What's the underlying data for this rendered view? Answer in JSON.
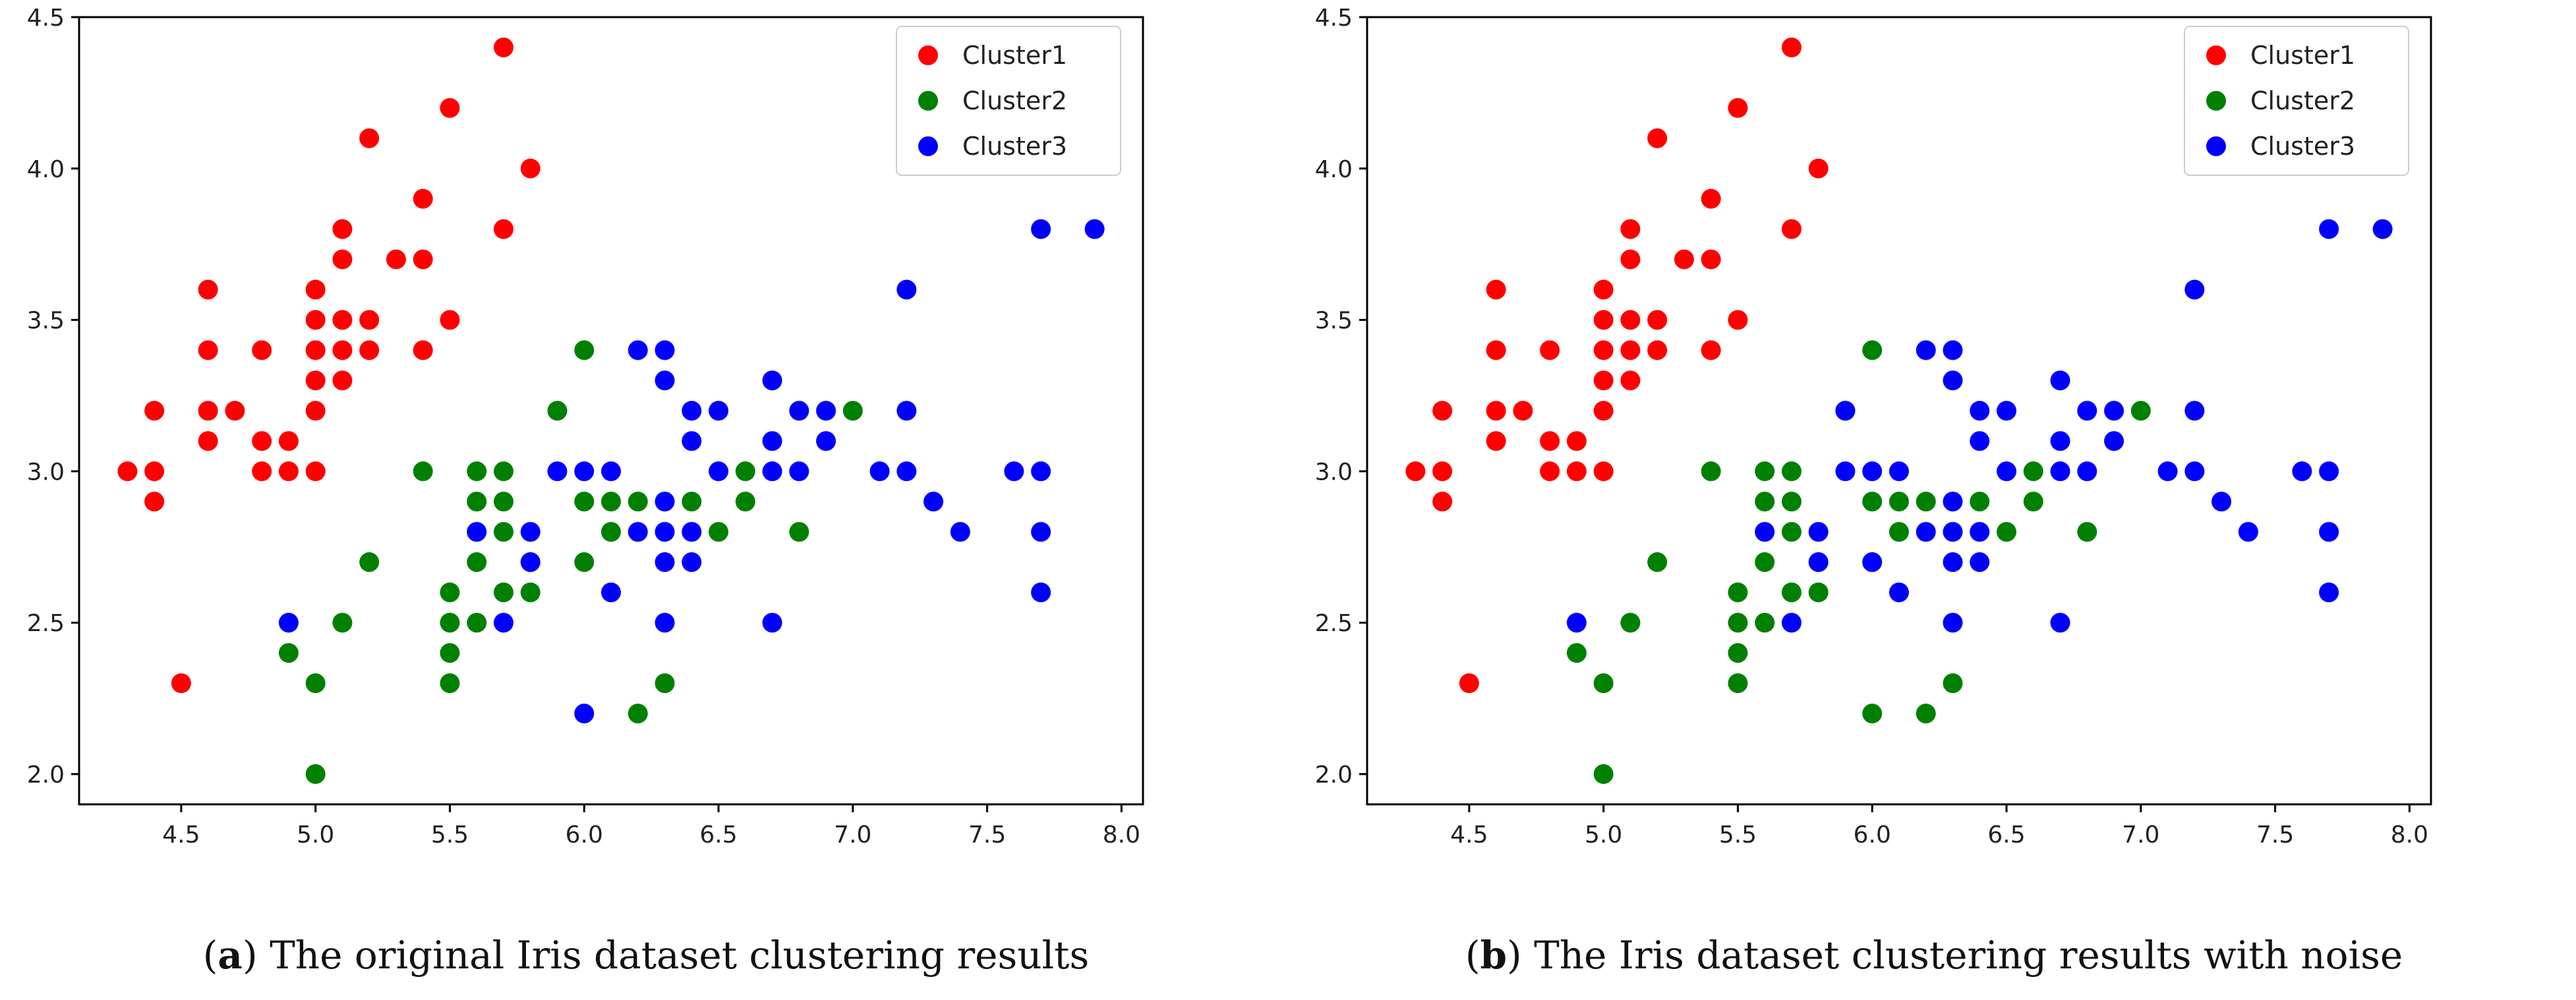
{
  "chart_data": [
    {
      "type": "scatter",
      "panel": "a",
      "caption_letter": "a",
      "caption_text": "The original Iris dataset clustering results",
      "title": "",
      "xlabel": "",
      "ylabel": "",
      "xlim": [
        4.12,
        8.08
      ],
      "ylim": [
        1.9,
        4.5
      ],
      "xticks": [
        "4.5",
        "5.0",
        "5.5",
        "6.0",
        "6.5",
        "7.0",
        "7.5",
        "8.0"
      ],
      "yticks": [
        "2.0",
        "2.5",
        "3.0",
        "3.5",
        "4.0",
        "4.5"
      ],
      "grid": false,
      "legend_position": "top-right",
      "series": [
        {
          "name": "Cluster1",
          "color": "#ff0000",
          "points": [
            [
              4.3,
              3.0
            ],
            [
              4.4,
              3.0
            ],
            [
              4.4,
              2.9
            ],
            [
              4.4,
              3.2
            ],
            [
              4.5,
              2.3
            ],
            [
              4.6,
              3.1
            ],
            [
              4.6,
              3.2
            ],
            [
              4.6,
              3.4
            ],
            [
              4.6,
              3.6
            ],
            [
              4.7,
              3.2
            ],
            [
              4.8,
              3.0
            ],
            [
              4.8,
              3.1
            ],
            [
              4.8,
              3.4
            ],
            [
              4.9,
              3.0
            ],
            [
              4.9,
              3.1
            ],
            [
              5.0,
              3.0
            ],
            [
              5.0,
              3.2
            ],
            [
              5.0,
              3.3
            ],
            [
              5.0,
              3.4
            ],
            [
              5.0,
              3.5
            ],
            [
              5.0,
              3.6
            ],
            [
              5.1,
              3.3
            ],
            [
              5.1,
              3.4
            ],
            [
              5.1,
              3.5
            ],
            [
              5.1,
              3.7
            ],
            [
              5.1,
              3.8
            ],
            [
              5.2,
              3.4
            ],
            [
              5.2,
              3.5
            ],
            [
              5.2,
              4.1
            ],
            [
              5.3,
              3.7
            ],
            [
              5.4,
              3.4
            ],
            [
              5.4,
              3.7
            ],
            [
              5.4,
              3.9
            ],
            [
              5.5,
              3.5
            ],
            [
              5.5,
              4.2
            ],
            [
              5.7,
              3.8
            ],
            [
              5.7,
              4.4
            ],
            [
              5.8,
              4.0
            ]
          ]
        },
        {
          "name": "Cluster2",
          "color": "#008000",
          "points": [
            [
              4.9,
              2.4
            ],
            [
              5.0,
              2.0
            ],
            [
              5.0,
              2.3
            ],
            [
              5.1,
              2.5
            ],
            [
              5.2,
              2.7
            ],
            [
              5.4,
              3.0
            ],
            [
              5.5,
              2.3
            ],
            [
              5.5,
              2.4
            ],
            [
              5.5,
              2.5
            ],
            [
              5.5,
              2.6
            ],
            [
              5.6,
              2.5
            ],
            [
              5.6,
              2.7
            ],
            [
              5.6,
              2.9
            ],
            [
              5.6,
              3.0
            ],
            [
              5.7,
              2.6
            ],
            [
              5.7,
              2.8
            ],
            [
              5.7,
              2.9
            ],
            [
              5.7,
              3.0
            ],
            [
              5.8,
              2.6
            ],
            [
              5.8,
              2.7
            ],
            [
              5.9,
              3.2
            ],
            [
              6.0,
              2.7
            ],
            [
              6.0,
              2.9
            ],
            [
              6.0,
              3.4
            ],
            [
              6.1,
              2.8
            ],
            [
              6.1,
              2.9
            ],
            [
              6.2,
              2.2
            ],
            [
              6.2,
              2.9
            ],
            [
              6.3,
              2.3
            ],
            [
              6.4,
              2.9
            ],
            [
              6.5,
              2.8
            ],
            [
              6.6,
              2.9
            ],
            [
              6.6,
              3.0
            ],
            [
              6.8,
              2.8
            ],
            [
              7.0,
              3.2
            ]
          ]
        },
        {
          "name": "Cluster3",
          "color": "#0000ff",
          "points": [
            [
              4.9,
              2.5
            ],
            [
              5.6,
              2.8
            ],
            [
              5.7,
              2.5
            ],
            [
              5.8,
              2.7
            ],
            [
              5.8,
              2.8
            ],
            [
              5.9,
              3.0
            ],
            [
              6.0,
              2.2
            ],
            [
              6.0,
              3.0
            ],
            [
              6.1,
              2.6
            ],
            [
              6.1,
              3.0
            ],
            [
              6.2,
              2.8
            ],
            [
              6.2,
              3.4
            ],
            [
              6.3,
              2.5
            ],
            [
              6.3,
              2.7
            ],
            [
              6.3,
              2.8
            ],
            [
              6.3,
              2.9
            ],
            [
              6.3,
              3.3
            ],
            [
              6.3,
              3.4
            ],
            [
              6.4,
              2.7
            ],
            [
              6.4,
              2.8
            ],
            [
              6.4,
              3.1
            ],
            [
              6.4,
              3.2
            ],
            [
              6.5,
              3.0
            ],
            [
              6.5,
              3.2
            ],
            [
              6.7,
              2.5
            ],
            [
              6.7,
              3.0
            ],
            [
              6.7,
              3.1
            ],
            [
              6.7,
              3.3
            ],
            [
              6.8,
              3.0
            ],
            [
              6.8,
              3.2
            ],
            [
              6.9,
              3.1
            ],
            [
              6.9,
              3.2
            ],
            [
              7.1,
              3.0
            ],
            [
              7.2,
              3.0
            ],
            [
              7.2,
              3.2
            ],
            [
              7.2,
              3.6
            ],
            [
              7.3,
              2.9
            ],
            [
              7.4,
              2.8
            ],
            [
              7.6,
              3.0
            ],
            [
              7.7,
              2.6
            ],
            [
              7.7,
              2.8
            ],
            [
              7.7,
              3.0
            ],
            [
              7.7,
              3.8
            ],
            [
              7.9,
              3.8
            ]
          ]
        }
      ]
    },
    {
      "type": "scatter",
      "panel": "b",
      "caption_letter": "b",
      "caption_text": "The Iris dataset clustering results with noise",
      "title": "",
      "xlabel": "",
      "ylabel": "",
      "xlim": [
        4.12,
        8.08
      ],
      "ylim": [
        1.9,
        4.5
      ],
      "xticks": [
        "4.5",
        "5.0",
        "5.5",
        "6.0",
        "6.5",
        "7.0",
        "7.5",
        "8.0"
      ],
      "yticks": [
        "2.0",
        "2.5",
        "3.0",
        "3.5",
        "4.0",
        "4.5"
      ],
      "grid": false,
      "legend_position": "top-right",
      "series": [
        {
          "name": "Cluster1",
          "color": "#ff0000",
          "points": [
            [
              4.3,
              3.0
            ],
            [
              4.4,
              3.0
            ],
            [
              4.4,
              2.9
            ],
            [
              4.4,
              3.2
            ],
            [
              4.5,
              2.3
            ],
            [
              4.6,
              3.1
            ],
            [
              4.6,
              3.2
            ],
            [
              4.6,
              3.4
            ],
            [
              4.6,
              3.6
            ],
            [
              4.7,
              3.2
            ],
            [
              4.8,
              3.0
            ],
            [
              4.8,
              3.1
            ],
            [
              4.8,
              3.4
            ],
            [
              4.9,
              3.0
            ],
            [
              4.9,
              3.1
            ],
            [
              5.0,
              3.0
            ],
            [
              5.0,
              3.2
            ],
            [
              5.0,
              3.3
            ],
            [
              5.0,
              3.4
            ],
            [
              5.0,
              3.5
            ],
            [
              5.0,
              3.6
            ],
            [
              5.1,
              3.3
            ],
            [
              5.1,
              3.4
            ],
            [
              5.1,
              3.5
            ],
            [
              5.1,
              3.7
            ],
            [
              5.1,
              3.8
            ],
            [
              5.2,
              3.4
            ],
            [
              5.2,
              3.5
            ],
            [
              5.2,
              4.1
            ],
            [
              5.3,
              3.7
            ],
            [
              5.4,
              3.4
            ],
            [
              5.4,
              3.7
            ],
            [
              5.4,
              3.9
            ],
            [
              5.5,
              3.5
            ],
            [
              5.5,
              4.2
            ],
            [
              5.7,
              3.8
            ],
            [
              5.7,
              4.4
            ],
            [
              5.8,
              4.0
            ]
          ]
        },
        {
          "name": "Cluster2",
          "color": "#008000",
          "points": [
            [
              4.9,
              2.4
            ],
            [
              5.0,
              2.0
            ],
            [
              5.0,
              2.3
            ],
            [
              5.1,
              2.5
            ],
            [
              5.2,
              2.7
            ],
            [
              5.4,
              3.0
            ],
            [
              5.5,
              2.3
            ],
            [
              5.5,
              2.4
            ],
            [
              5.5,
              2.5
            ],
            [
              5.5,
              2.6
            ],
            [
              5.6,
              2.5
            ],
            [
              5.6,
              2.7
            ],
            [
              5.6,
              2.9
            ],
            [
              5.6,
              3.0
            ],
            [
              5.7,
              2.6
            ],
            [
              5.7,
              2.8
            ],
            [
              5.7,
              2.9
            ],
            [
              5.7,
              3.0
            ],
            [
              5.8,
              2.6
            ],
            [
              5.8,
              2.7
            ],
            [
              5.9,
              3.2
            ],
            [
              6.0,
              2.2
            ],
            [
              6.0,
              2.7
            ],
            [
              6.0,
              2.9
            ],
            [
              6.0,
              3.4
            ],
            [
              6.1,
              2.8
            ],
            [
              6.1,
              2.9
            ],
            [
              6.2,
              2.2
            ],
            [
              6.2,
              2.9
            ],
            [
              6.3,
              2.3
            ],
            [
              6.4,
              2.9
            ],
            [
              6.5,
              2.8
            ],
            [
              6.6,
              2.9
            ],
            [
              6.6,
              3.0
            ],
            [
              6.8,
              2.8
            ],
            [
              7.0,
              3.2
            ]
          ]
        },
        {
          "name": "Cluster3",
          "color": "#0000ff",
          "points": [
            [
              4.9,
              2.5
            ],
            [
              5.6,
              2.8
            ],
            [
              5.7,
              2.5
            ],
            [
              5.8,
              2.7
            ],
            [
              5.8,
              2.8
            ],
            [
              5.9,
              3.0
            ],
            [
              5.9,
              3.2
            ],
            [
              6.0,
              2.7
            ],
            [
              6.0,
              3.0
            ],
            [
              6.1,
              2.6
            ],
            [
              6.1,
              3.0
            ],
            [
              6.2,
              2.8
            ],
            [
              6.2,
              3.4
            ],
            [
              6.3,
              2.5
            ],
            [
              6.3,
              2.7
            ],
            [
              6.3,
              2.8
            ],
            [
              6.3,
              2.9
            ],
            [
              6.3,
              3.3
            ],
            [
              6.3,
              3.4
            ],
            [
              6.4,
              2.7
            ],
            [
              6.4,
              2.8
            ],
            [
              6.4,
              3.1
            ],
            [
              6.4,
              3.2
            ],
            [
              6.5,
              3.0
            ],
            [
              6.5,
              3.2
            ],
            [
              6.7,
              2.5
            ],
            [
              6.7,
              3.0
            ],
            [
              6.7,
              3.1
            ],
            [
              6.7,
              3.3
            ],
            [
              6.8,
              3.0
            ],
            [
              6.8,
              3.2
            ],
            [
              6.9,
              3.1
            ],
            [
              6.9,
              3.2
            ],
            [
              7.1,
              3.0
            ],
            [
              7.2,
              3.0
            ],
            [
              7.2,
              3.2
            ],
            [
              7.2,
              3.6
            ],
            [
              7.3,
              2.9
            ],
            [
              7.4,
              2.8
            ],
            [
              7.6,
              3.0
            ],
            [
              7.7,
              2.6
            ],
            [
              7.7,
              2.8
            ],
            [
              7.7,
              3.0
            ],
            [
              7.7,
              3.8
            ],
            [
              7.9,
              3.8
            ]
          ]
        }
      ]
    }
  ]
}
